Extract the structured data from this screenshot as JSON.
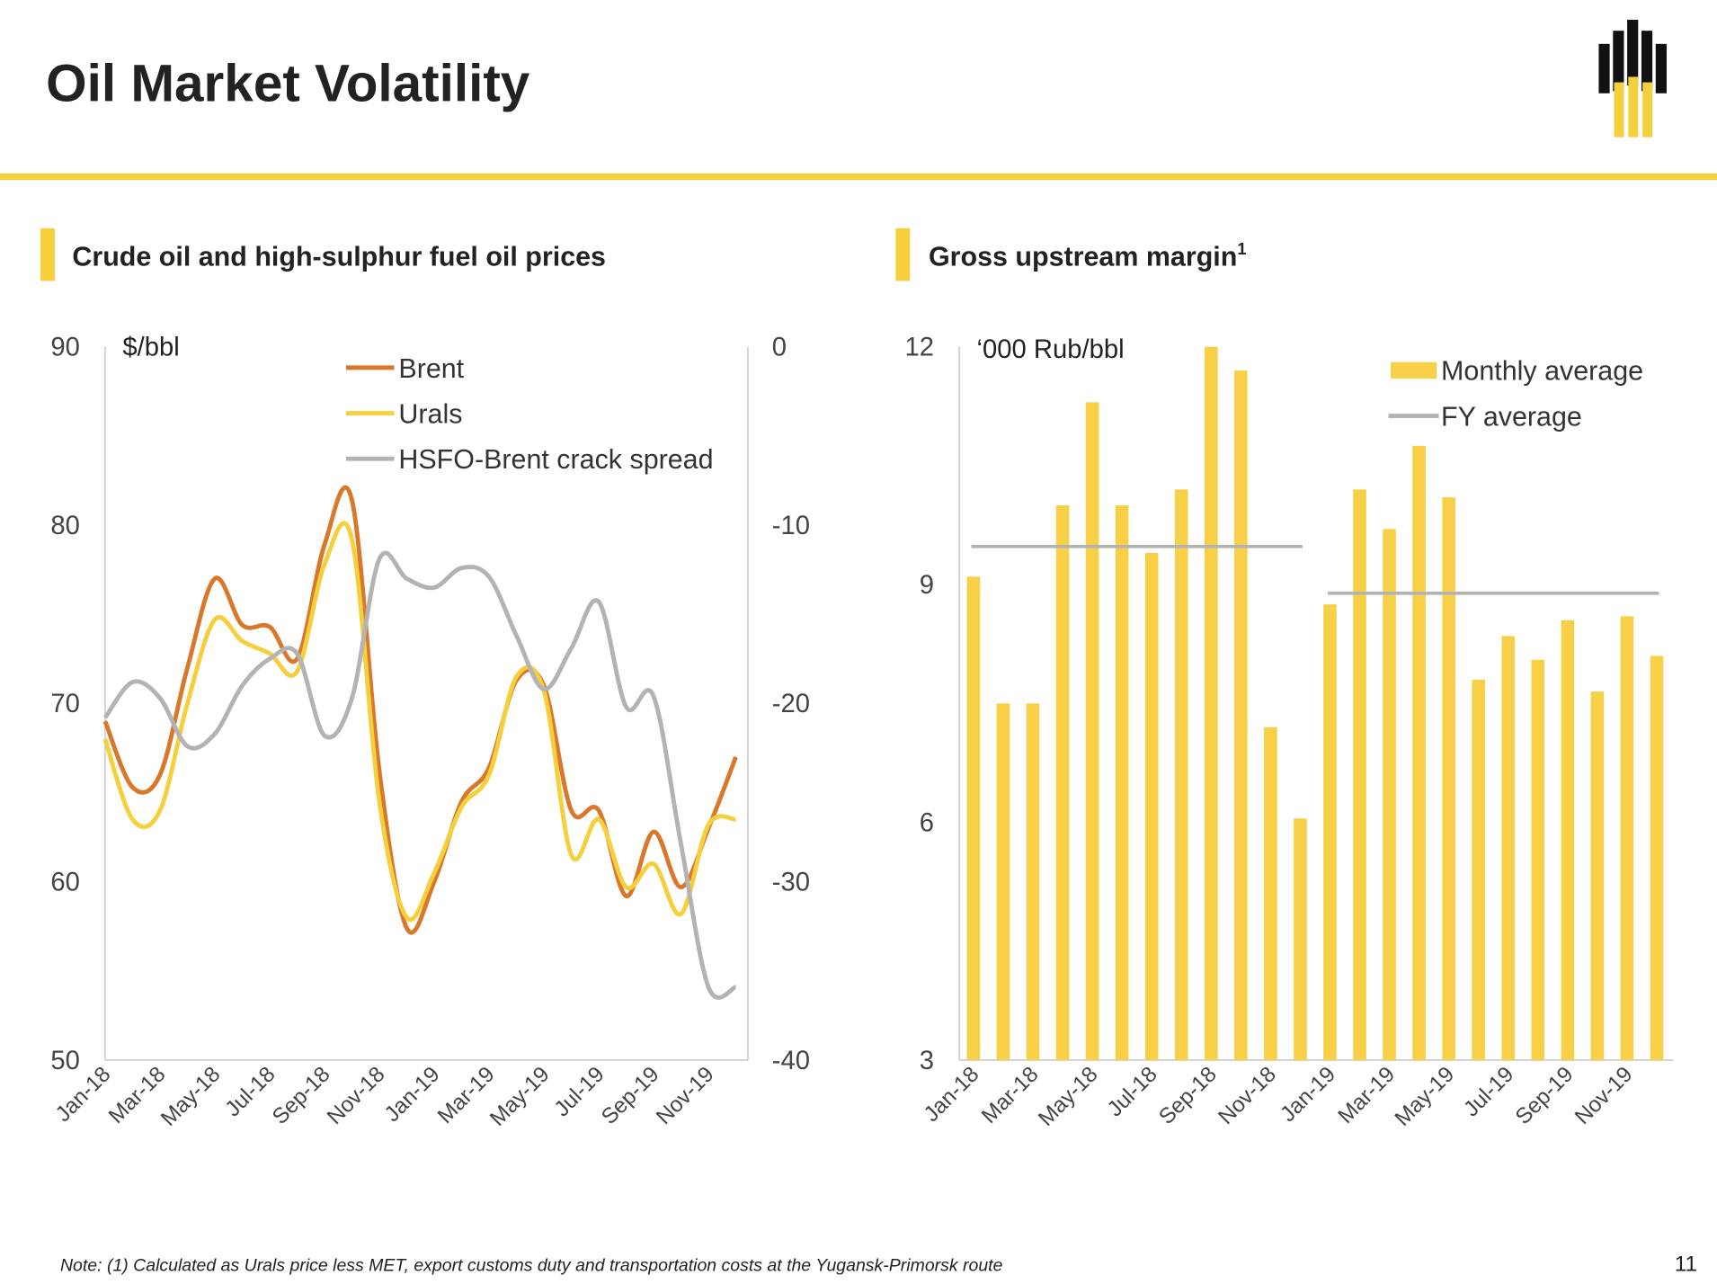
{
  "title": "Oil Market Volatility",
  "note": "Note: (1) Calculated as Urals price less MET, export customs duty and transportation costs at the Yugansk-Primorsk route",
  "page_number": "11",
  "chart_data": [
    {
      "type": "line",
      "title": "Crude oil and high-sulphur fuel oil prices",
      "y_label": "$/bbl",
      "categories": [
        "Jan-18",
        null,
        "Mar-18",
        null,
        "May-18",
        null,
        "Jul-18",
        null,
        "Sep-18",
        null,
        "Nov-18",
        null,
        "Jan-19",
        null,
        "Mar-19",
        null,
        "May-19",
        null,
        "Jul-19",
        null,
        "Sep-19",
        null,
        "Nov-19",
        null
      ],
      "ylim": [
        50,
        90
      ],
      "yticks": [
        50,
        60,
        70,
        80,
        90
      ],
      "y2lim": [
        -40,
        0
      ],
      "y2ticks": [
        -40,
        -30,
        -20,
        -10,
        0
      ],
      "legend": "top-right",
      "series": [
        {
          "name": "Brent",
          "color": "#d9772b",
          "values": [
            69,
            65.3,
            66,
            72,
            77,
            74.4,
            74.3,
            72.5,
            78.9,
            81.4,
            66.2,
            57.4,
            60,
            64.5,
            66.4,
            71.3,
            71,
            64,
            64,
            59.2,
            62.8,
            59.7,
            63,
            67
          ]
        },
        {
          "name": "Urals",
          "color": "#f5cf3c",
          "values": [
            68,
            63.5,
            64,
            70,
            74.7,
            73.5,
            72.8,
            71.8,
            77.8,
            79.2,
            64.5,
            58,
            60.5,
            64.2,
            66,
            71.5,
            70.7,
            61.5,
            63.5,
            59.7,
            61,
            58.2,
            63.2,
            63.5
          ]
        },
        {
          "name": "HSFO-Brent crack spread",
          "color": "#b3b3b3",
          "axis": "y2",
          "values": [
            -20.8,
            -18.8,
            -19.7,
            -22.4,
            -21.7,
            -19,
            -17.5,
            -17.2,
            -21.8,
            -19.7,
            -11.9,
            -13,
            -13.5,
            -12.4,
            -12.9,
            -16.2,
            -19.2,
            -16.9,
            -14.3,
            -20.2,
            -19.6,
            -27.9,
            -35.9,
            -35.9
          ]
        }
      ]
    },
    {
      "type": "bar",
      "title": "Gross upstream margin",
      "title_superscript": "1",
      "y_label": "‘000 Rub/bbl",
      "categories": [
        "Jan-18",
        null,
        "Mar-18",
        null,
        "May-18",
        null,
        "Jul-18",
        null,
        "Sep-18",
        null,
        "Nov-18",
        null,
        "Jan-19",
        null,
        "Mar-19",
        null,
        "May-19",
        null,
        "Jul-19",
        null,
        "Sep-19",
        null,
        "Nov-19",
        null
      ],
      "ylim": [
        3,
        12
      ],
      "yticks": [
        3,
        6,
        9,
        12
      ],
      "legend": "top-right",
      "series": [
        {
          "name": "Monthly average",
          "color": "#f7d047",
          "values": [
            9.1,
            7.5,
            7.5,
            10,
            11.3,
            10,
            9.4,
            10.2,
            12,
            11.7,
            7.2,
            6.05,
            8.75,
            10.2,
            9.7,
            10.75,
            10.1,
            7.8,
            8.35,
            8.05,
            8.55,
            7.65,
            8.6,
            8.1
          ]
        }
      ],
      "fy_average": {
        "name": "FY average",
        "color": "#b3b3b3",
        "values": [
          9.48,
          8.89
        ]
      }
    }
  ]
}
